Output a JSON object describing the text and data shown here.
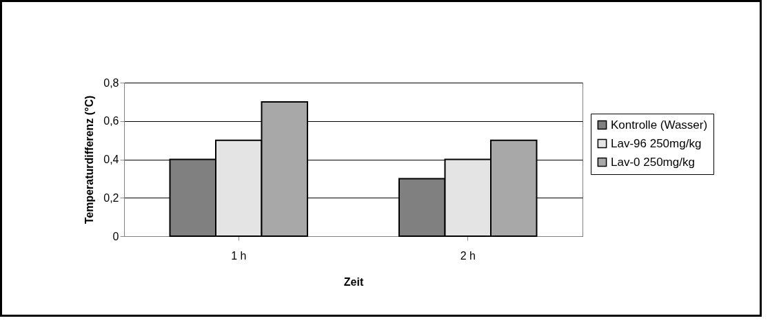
{
  "chart_data": {
    "type": "bar",
    "xlabel": "Zeit",
    "ylabel": "Temperaturdifferenz (°C)",
    "categories": [
      "1 h",
      "2 h"
    ],
    "series": [
      {
        "name": "Kontrolle (Wasser)",
        "color": "#808080",
        "values": [
          0.4,
          0.3
        ]
      },
      {
        "name": "Lav-96 250mg/kg",
        "color": "#e4e4e4",
        "values": [
          0.5,
          0.4
        ]
      },
      {
        "name": "Lav-0 250mg/kg",
        "color": "#a8a8a8",
        "values": [
          0.7,
          0.5
        ]
      }
    ],
    "ylim": [
      0,
      0.8
    ],
    "yticks": [
      0,
      {
        "value": 0.2,
        "label": "0,2"
      },
      {
        "value": 0.4,
        "label": "0,4"
      },
      {
        "value": 0.6,
        "label": "0,6"
      },
      {
        "value": 0.8,
        "label": "0,8"
      }
    ],
    "grid": "y",
    "legend": "right"
  }
}
